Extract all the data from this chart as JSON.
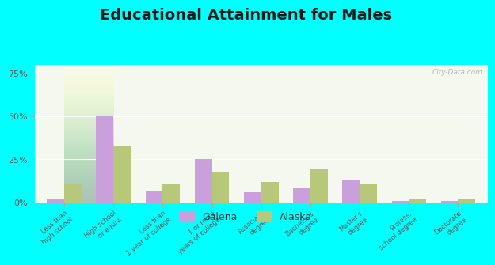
{
  "title": "Educational Attainment for Males",
  "categories": [
    "Less than\nhigh school",
    "High school\nor equiv.",
    "Less than\n1 year of college",
    "1 or more\nyears of college",
    "Associate\ndegree",
    "Bachelor's\ndegree",
    "Master's\ndegree",
    "Profess.\nschool degree",
    "Doctorate\ndegree"
  ],
  "galena": [
    2,
    50,
    7,
    25,
    6,
    8,
    13,
    1,
    1
  ],
  "alaska": [
    11,
    33,
    11,
    18,
    12,
    19,
    11,
    2,
    2
  ],
  "galena_color": "#c9a0dc",
  "alaska_color": "#b8c87a",
  "background_color": "#00ffff",
  "plot_bg": "#deebd0",
  "title_fontsize": 14,
  "ylabel_ticks": [
    0,
    25,
    50,
    75
  ],
  "bar_width": 0.35,
  "legend_galena": "Galena",
  "legend_alaska": "Alaska",
  "watermark": "City-Data.com"
}
